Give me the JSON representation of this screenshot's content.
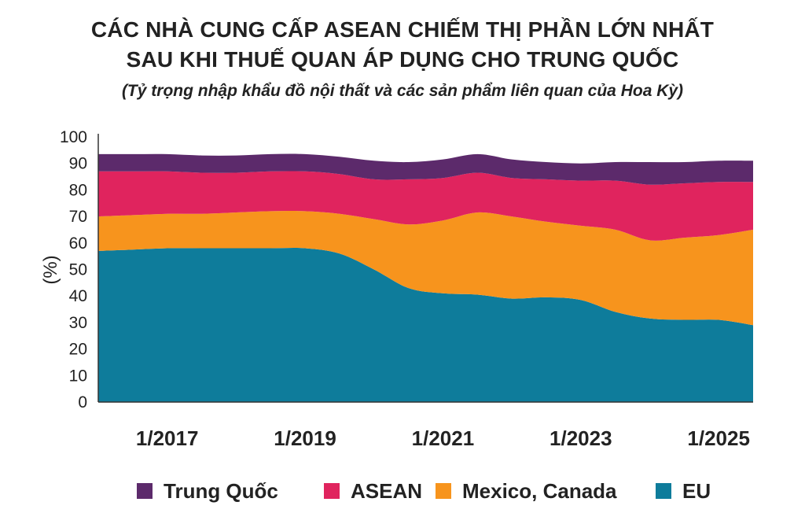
{
  "title_line1": "CÁC NHÀ CUNG CẤP ASEAN CHIẾM THỊ PHẦN LỚN NHẤT",
  "title_line2": "SAU KHI THUẾ QUAN ÁP DỤNG CHO TRUNG QUỐC",
  "subtitle": "(Tỷ trọng nhập khẩu đồ nội thất và các sản phẩm liên quan của Hoa Kỳ)",
  "chart_data": {
    "type": "area",
    "stacked": true,
    "ylabel": "(%)",
    "xlabel": "",
    "ylim": [
      0,
      100
    ],
    "yticks": [
      0,
      10,
      20,
      30,
      40,
      50,
      60,
      70,
      80,
      90,
      100
    ],
    "xlim": [
      "2016-01",
      "2025-07"
    ],
    "xticks": [
      {
        "date": "2017-01",
        "label": "1/2017"
      },
      {
        "date": "2019-01",
        "label": "1/2019"
      },
      {
        "date": "2021-01",
        "label": "1/2021"
      },
      {
        "date": "2023-01",
        "label": "1/2023"
      },
      {
        "date": "2025-01",
        "label": "1/2025"
      }
    ],
    "x": [
      "2016-01",
      "2016-07",
      "2017-01",
      "2017-07",
      "2018-01",
      "2018-07",
      "2019-01",
      "2019-07",
      "2020-01",
      "2020-07",
      "2021-01",
      "2021-07",
      "2022-01",
      "2022-07",
      "2023-01",
      "2023-07",
      "2024-01",
      "2024-07",
      "2025-01",
      "2025-07"
    ],
    "series": [
      {
        "name": "EU",
        "color": "#0e7c9b",
        "values": [
          57,
          57.5,
          58,
          58,
          58,
          58,
          58,
          56,
          50,
          43,
          41,
          40.5,
          39,
          39.5,
          38.5,
          34,
          31.5,
          31,
          31,
          29
        ]
      },
      {
        "name": "Mexico, Canada",
        "color": "#f7941d",
        "values": [
          13,
          13,
          13,
          13,
          13.5,
          14,
          14,
          15,
          19,
          24,
          27.5,
          31,
          31,
          28.5,
          28,
          31,
          29.5,
          31,
          32,
          36
        ]
      },
      {
        "name": "ASEAN",
        "color": "#e0245e",
        "values": [
          17,
          16.5,
          16,
          15.5,
          15,
          15,
          15,
          15,
          15,
          17,
          16,
          15,
          14.5,
          16,
          17,
          18.5,
          21,
          20.5,
          20,
          18
        ]
      },
      {
        "name": "Trung Quốc",
        "color": "#5c2a6b",
        "values": [
          6.5,
          6.5,
          6.5,
          6.5,
          6.5,
          6.5,
          6.5,
          6.5,
          7,
          6.5,
          7,
          7,
          7,
          6.5,
          6.5,
          7,
          8.5,
          8,
          8,
          8
        ]
      }
    ],
    "legend": {
      "placement": "bottom",
      "order": [
        "Trung Quốc",
        "ASEAN",
        "Mexico, Canada",
        "EU"
      ]
    }
  }
}
